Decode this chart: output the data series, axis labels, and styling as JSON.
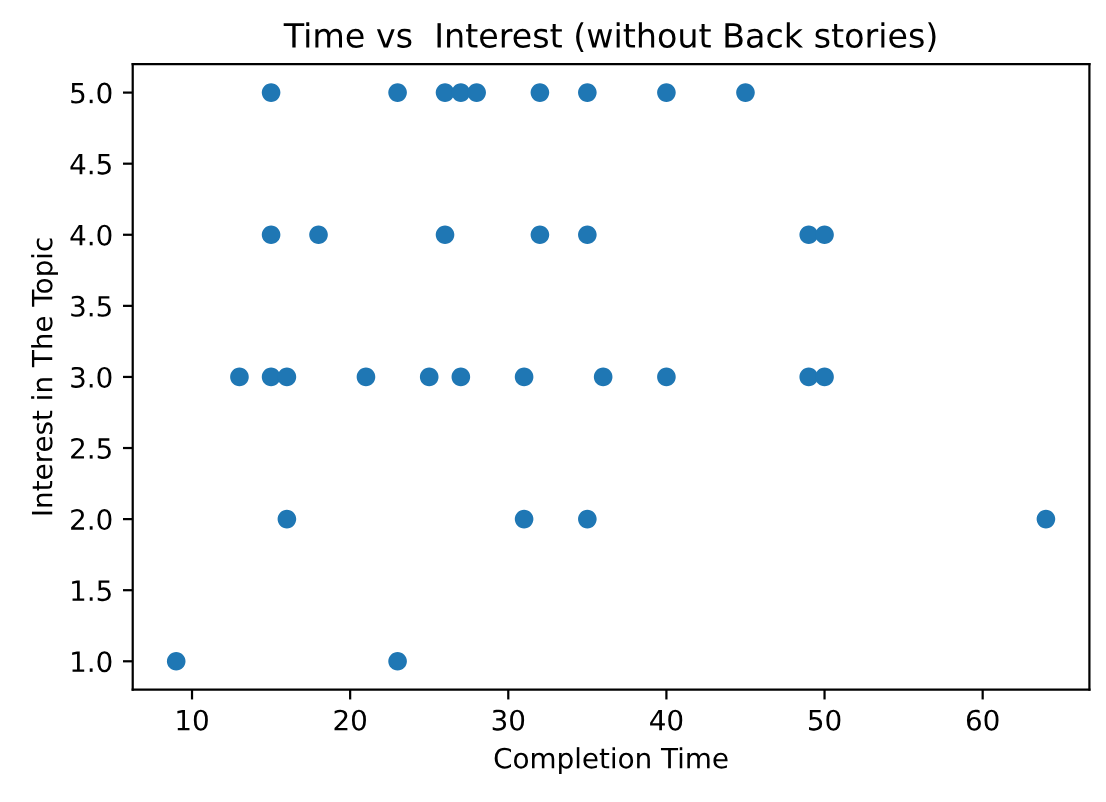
{
  "chart_data": {
    "type": "scatter",
    "title": "Time vs  Interest (without Back stories)",
    "xlabel": "Completion Time",
    "ylabel": "Interest in The Topic",
    "x": [
      15,
      23,
      26,
      27,
      28,
      32,
      35,
      40,
      45,
      15,
      18,
      26,
      32,
      35,
      49,
      50,
      13,
      15,
      16,
      21,
      25,
      27,
      31,
      36,
      40,
      49,
      50,
      16,
      31,
      35,
      64,
      9,
      23
    ],
    "values": [
      5,
      5,
      5,
      5,
      5,
      5,
      5,
      5,
      5,
      4,
      4,
      4,
      4,
      4,
      4,
      4,
      3,
      3,
      3,
      3,
      3,
      3,
      3,
      3,
      3,
      3,
      3,
      2,
      2,
      2,
      2,
      1,
      1
    ],
    "color": "#1f77b4",
    "marker": "circle",
    "xlim": [
      6.25,
      66.75
    ],
    "xticks": [
      10,
      20,
      30,
      40,
      50,
      60
    ],
    "ylim": [
      0.8,
      5.2
    ],
    "yticks": [
      {
        "value": 1,
        "label": "1.0"
      },
      1.5,
      {
        "value": 2,
        "label": "2.0"
      },
      2.5,
      {
        "value": 3,
        "label": "3.0"
      },
      3.5,
      {
        "value": 4,
        "label": "4.0"
      },
      4.5,
      {
        "value": 5,
        "label": "5.0"
      }
    ],
    "grid": false
  }
}
